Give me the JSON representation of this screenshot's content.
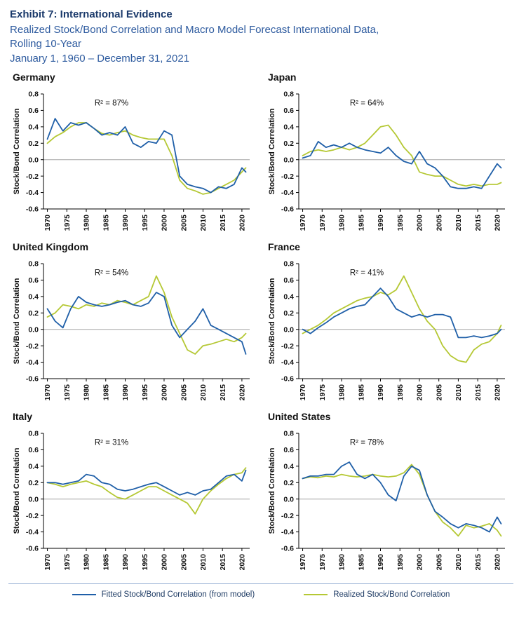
{
  "header": {
    "exhibit_title": "Exhibit 7: International Evidence",
    "subtitle_line1": "Realized Stock/Bond Correlation and Macro Model Forecast International Data,",
    "subtitle_line2": "Rolling 10-Year",
    "subtitle_line3": "January 1, 1960 – December 31, 2021"
  },
  "axis": {
    "y_label": "Stock/Bond Correlation",
    "y_ticks": [
      0.8,
      0.6,
      0.4,
      0.2,
      0.0,
      -0.2,
      -0.4,
      -0.6
    ],
    "x_ticks": [
      1970,
      1975,
      1980,
      1985,
      1990,
      1995,
      2000,
      2005,
      2010,
      2015,
      2020
    ],
    "ylim": [
      -0.6,
      0.8
    ],
    "xlim": [
      1969,
      2022
    ],
    "grid": false
  },
  "colors": {
    "fitted": "#1f5fa8",
    "realized": "#b5c834",
    "zero_line": "#a6a6a6",
    "axis_line": "#000000",
    "title_navy": "#1b3a6b",
    "subtitle_blue": "#2e5b9f"
  },
  "legend": {
    "position": "bottom-center",
    "fitted_label": "Fitted Stock/Bond Correlation (from model)",
    "realized_label": "Realized Stock/Bond Correlation"
  },
  "chart_data": [
    {
      "type": "line",
      "title": "Germany",
      "r2": "R² = 87%",
      "ylabel": "Stock/Bond Correlation",
      "x": [
        1970,
        1972,
        1974,
        1976,
        1978,
        1980,
        1982,
        1984,
        1986,
        1988,
        1990,
        1992,
        1994,
        1996,
        1998,
        2000,
        2002,
        2004,
        2006,
        2008,
        2010,
        2012,
        2014,
        2016,
        2018,
        2020,
        2021
      ],
      "series": [
        {
          "name": "fitted",
          "values": [
            0.25,
            0.5,
            0.35,
            0.45,
            0.42,
            0.45,
            0.38,
            0.3,
            0.33,
            0.3,
            0.4,
            0.2,
            0.15,
            0.22,
            0.2,
            0.35,
            0.3,
            -0.2,
            -0.3,
            -0.33,
            -0.35,
            -0.4,
            -0.33,
            -0.35,
            -0.3,
            -0.1,
            -0.15
          ]
        },
        {
          "name": "realized",
          "values": [
            0.2,
            0.28,
            0.33,
            0.4,
            0.45,
            0.45,
            0.38,
            0.32,
            0.3,
            0.33,
            0.35,
            0.3,
            0.27,
            0.25,
            0.25,
            0.25,
            0.05,
            -0.25,
            -0.35,
            -0.38,
            -0.42,
            -0.4,
            -0.35,
            -0.3,
            -0.25,
            -0.15,
            -0.1
          ]
        }
      ]
    },
    {
      "type": "line",
      "title": "Japan",
      "r2": "R² = 64%",
      "ylabel": "Stock/Bond Correlation",
      "x": [
        1970,
        1972,
        1974,
        1976,
        1978,
        1980,
        1982,
        1984,
        1986,
        1988,
        1990,
        1992,
        1994,
        1996,
        1998,
        2000,
        2002,
        2004,
        2006,
        2008,
        2010,
        2012,
        2014,
        2016,
        2018,
        2020,
        2021
      ],
      "series": [
        {
          "name": "fitted",
          "values": [
            0.02,
            0.05,
            0.22,
            0.15,
            0.18,
            0.15,
            0.2,
            0.15,
            0.12,
            0.1,
            0.08,
            0.15,
            0.05,
            -0.02,
            -0.05,
            0.1,
            -0.05,
            -0.1,
            -0.2,
            -0.33,
            -0.35,
            -0.35,
            -0.33,
            -0.35,
            -0.2,
            -0.05,
            -0.1
          ]
        },
        {
          "name": "realized",
          "values": [
            0.05,
            0.1,
            0.12,
            0.1,
            0.12,
            0.15,
            0.12,
            0.15,
            0.2,
            0.3,
            0.4,
            0.42,
            0.3,
            0.15,
            0.05,
            -0.15,
            -0.18,
            -0.2,
            -0.2,
            -0.25,
            -0.3,
            -0.32,
            -0.3,
            -0.32,
            -0.3,
            -0.3,
            -0.28
          ]
        }
      ]
    },
    {
      "type": "line",
      "title": "United Kingdom",
      "r2": "R² = 54%",
      "ylabel": "Stock/Bond Correlation",
      "x": [
        1970,
        1972,
        1974,
        1976,
        1978,
        1980,
        1982,
        1984,
        1986,
        1988,
        1990,
        1992,
        1994,
        1996,
        1998,
        2000,
        2002,
        2004,
        2006,
        2008,
        2010,
        2012,
        2014,
        2016,
        2018,
        2020,
        2021
      ],
      "series": [
        {
          "name": "fitted",
          "values": [
            0.25,
            0.1,
            0.02,
            0.25,
            0.4,
            0.33,
            0.3,
            0.28,
            0.3,
            0.33,
            0.35,
            0.3,
            0.28,
            0.32,
            0.45,
            0.4,
            0.05,
            -0.1,
            0.0,
            0.1,
            0.25,
            0.05,
            0.0,
            -0.05,
            -0.1,
            -0.15,
            -0.3
          ]
        },
        {
          "name": "realized",
          "values": [
            0.15,
            0.2,
            0.3,
            0.28,
            0.25,
            0.3,
            0.28,
            0.32,
            0.3,
            0.35,
            0.33,
            0.3,
            0.35,
            0.4,
            0.65,
            0.45,
            0.15,
            -0.05,
            -0.25,
            -0.3,
            -0.2,
            -0.18,
            -0.15,
            -0.12,
            -0.15,
            -0.1,
            -0.05
          ]
        }
      ]
    },
    {
      "type": "line",
      "title": "France",
      "r2": "R² = 41%",
      "ylabel": "Stock/Bond Correlation",
      "x": [
        1970,
        1972,
        1974,
        1976,
        1978,
        1980,
        1982,
        1984,
        1986,
        1988,
        1990,
        1992,
        1994,
        1996,
        1998,
        2000,
        2002,
        2004,
        2006,
        2008,
        2010,
        2012,
        2014,
        2016,
        2018,
        2020,
        2021
      ],
      "series": [
        {
          "name": "fitted",
          "values": [
            0.0,
            -0.05,
            0.02,
            0.08,
            0.15,
            0.2,
            0.25,
            0.28,
            0.3,
            0.4,
            0.5,
            0.4,
            0.25,
            0.2,
            0.15,
            0.18,
            0.15,
            0.18,
            0.18,
            0.15,
            -0.1,
            -0.1,
            -0.08,
            -0.1,
            -0.08,
            -0.05,
            0.0
          ]
        },
        {
          "name": "realized",
          "values": [
            -0.05,
            0.0,
            0.05,
            0.12,
            0.2,
            0.25,
            0.3,
            0.35,
            0.38,
            0.4,
            0.45,
            0.42,
            0.48,
            0.65,
            0.45,
            0.25,
            0.1,
            0.0,
            -0.2,
            -0.32,
            -0.38,
            -0.4,
            -0.25,
            -0.18,
            -0.15,
            -0.05,
            0.05
          ]
        }
      ]
    },
    {
      "type": "line",
      "title": "Italy",
      "r2": "R² = 31%",
      "ylabel": "Stock/Bond Correlation",
      "x": [
        1970,
        1972,
        1974,
        1976,
        1978,
        1980,
        1982,
        1984,
        1986,
        1988,
        1990,
        1992,
        1994,
        1996,
        1998,
        2000,
        2002,
        2004,
        2006,
        2008,
        2010,
        2012,
        2014,
        2016,
        2018,
        2020,
        2021
      ],
      "series": [
        {
          "name": "fitted",
          "values": [
            0.2,
            0.2,
            0.18,
            0.2,
            0.22,
            0.3,
            0.28,
            0.2,
            0.18,
            0.12,
            0.1,
            0.12,
            0.15,
            0.18,
            0.2,
            0.15,
            0.1,
            0.05,
            0.08,
            0.05,
            0.1,
            0.12,
            0.2,
            0.28,
            0.3,
            0.22,
            0.35
          ]
        },
        {
          "name": "realized",
          "values": [
            0.2,
            0.18,
            0.15,
            0.18,
            0.2,
            0.22,
            0.18,
            0.15,
            0.08,
            0.02,
            0.0,
            0.05,
            0.1,
            0.15,
            0.15,
            0.1,
            0.05,
            0.0,
            -0.05,
            -0.18,
            0.0,
            0.1,
            0.18,
            0.25,
            0.3,
            0.32,
            0.38
          ]
        }
      ]
    },
    {
      "type": "line",
      "title": "United States",
      "r2": "R² = 78%",
      "ylabel": "Stock/Bond Correlation",
      "x": [
        1970,
        1972,
        1974,
        1976,
        1978,
        1980,
        1982,
        1984,
        1986,
        1988,
        1990,
        1992,
        1994,
        1996,
        1998,
        2000,
        2002,
        2004,
        2006,
        2008,
        2010,
        2012,
        2014,
        2016,
        2018,
        2020,
        2021
      ],
      "series": [
        {
          "name": "fitted",
          "values": [
            0.25,
            0.28,
            0.28,
            0.3,
            0.3,
            0.4,
            0.45,
            0.3,
            0.25,
            0.3,
            0.2,
            0.05,
            -0.02,
            0.28,
            0.4,
            0.35,
            0.05,
            -0.15,
            -0.22,
            -0.3,
            -0.35,
            -0.3,
            -0.32,
            -0.35,
            -0.4,
            -0.22,
            -0.3
          ]
        },
        {
          "name": "realized",
          "values": [
            0.25,
            0.27,
            0.26,
            0.28,
            0.27,
            0.3,
            0.28,
            0.27,
            0.28,
            0.3,
            0.28,
            0.27,
            0.28,
            0.32,
            0.42,
            0.3,
            0.05,
            -0.15,
            -0.28,
            -0.35,
            -0.45,
            -0.32,
            -0.35,
            -0.33,
            -0.3,
            -0.38,
            -0.45
          ]
        }
      ]
    }
  ]
}
